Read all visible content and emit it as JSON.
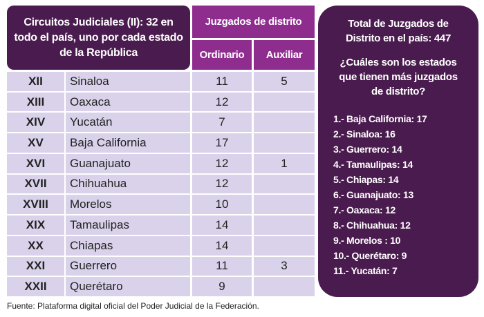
{
  "header": {
    "title": "Circuitos Judiciales (II): 32 en todo el país, uno por cada estado de la República",
    "group": "Juzgados de distrito",
    "columns": [
      "Ordinario",
      "Auxiliar"
    ]
  },
  "table": {
    "rows": [
      [
        "XII",
        "Sinaloa",
        11,
        5
      ],
      [
        "XIII",
        "Oaxaca",
        12,
        null
      ],
      [
        "XIV",
        "Yucatán",
        7,
        null
      ],
      [
        "XV",
        "Baja California",
        17,
        null
      ],
      [
        "XVI",
        "Guanajuato",
        12,
        1
      ],
      [
        "XVII",
        "Chihuahua",
        12,
        null
      ],
      [
        "XVIII",
        "Morelos",
        10,
        null
      ],
      [
        "XIX",
        "Tamaulipas",
        14,
        null
      ],
      [
        "XX",
        "Chiapas",
        14,
        null
      ],
      [
        "XXI",
        "Guerrero",
        11,
        3
      ],
      [
        "XXII",
        "Querétaro",
        9,
        null
      ]
    ]
  },
  "sidebar": {
    "total": "Total de Juzgados de Distrito en el país: 447",
    "question": "¿Cuáles son los estados que tienen más juzgados de distrito?",
    "items": [
      "1.- Baja California: 17",
      "2.- Sinaloa: 16",
      "3.- Guerrero: 14",
      "4.- Tamaulipas: 14",
      "5.- Chiapas: 14",
      "6.- Guanajuato: 13",
      "7.- Oaxaca: 12",
      "8.- Chihuahua: 12",
      "9.- Morelos : 10",
      "10.- Querétaro: 9",
      "11.- Yucatán: 7"
    ]
  },
  "source": "Fuente: Plataforma digital oficial del Poder Judicial de la Federación."
}
